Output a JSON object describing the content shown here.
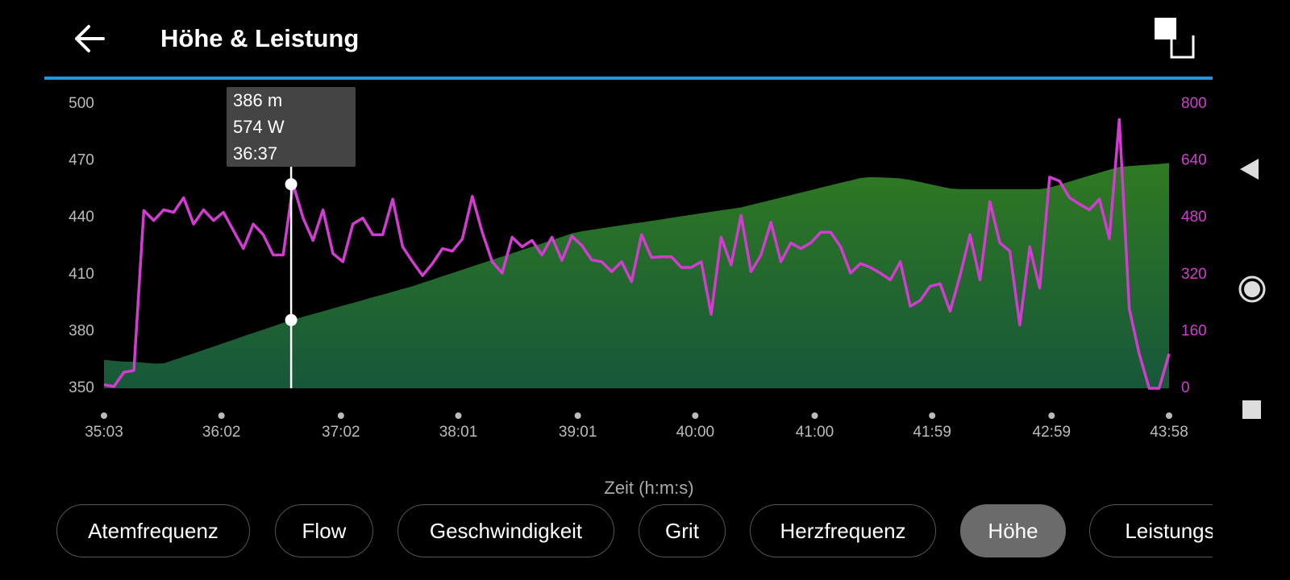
{
  "header": {
    "title": "Höhe & Leistung"
  },
  "chart_data": {
    "type": "line",
    "xlabel": "Zeit (h:m:s)",
    "x": [
      2103,
      2108,
      2113,
      2118,
      2123,
      2128,
      2133,
      2138,
      2143,
      2148,
      2153,
      2158,
      2163,
      2168,
      2173,
      2178,
      2183,
      2188,
      2193,
      2198,
      2203,
      2208,
      2213,
      2218,
      2223,
      2228,
      2233,
      2238,
      2243,
      2248,
      2253,
      2258,
      2263,
      2268,
      2273,
      2278,
      2283,
      2288,
      2293,
      2298,
      2303,
      2308,
      2313,
      2318,
      2323,
      2328,
      2333,
      2338,
      2343,
      2348,
      2353,
      2358,
      2363,
      2368,
      2373,
      2378,
      2383,
      2388,
      2393,
      2398,
      2403,
      2408,
      2413,
      2418,
      2423,
      2428,
      2433,
      2438,
      2443,
      2448,
      2453,
      2458,
      2463,
      2468,
      2473,
      2478,
      2483,
      2488,
      2493,
      2498,
      2503,
      2508,
      2513,
      2518,
      2523,
      2528,
      2533,
      2538,
      2543,
      2548,
      2553,
      2558,
      2563,
      2568,
      2573,
      2578,
      2583,
      2588,
      2593,
      2598,
      2603,
      2608,
      2613,
      2618,
      2623,
      2628,
      2633,
      2638
    ],
    "series": [
      {
        "type": "area",
        "color": "#2f7a22",
        "values": [
          365,
          364.5,
          364,
          364,
          363.5,
          363,
          363.1,
          364.9,
          366.7,
          368.4,
          370.2,
          372,
          373.8,
          375.6,
          377.4,
          379.2,
          380.9,
          382.7,
          384.5,
          386,
          387.7,
          389.2,
          390.6,
          392.1,
          393.6,
          395,
          396.5,
          398,
          399.4,
          400.9,
          402.4,
          403.8,
          405.6,
          407.3,
          409.1,
          410.8,
          412.5,
          414.3,
          416,
          417.8,
          419.5,
          421.2,
          423,
          424.7,
          426.4,
          428.2,
          429.9,
          431.7,
          432.8,
          433.6,
          434.4,
          435.2,
          436,
          436.8,
          437.5,
          438.3,
          439.1,
          439.9,
          440.7,
          441.5,
          442.3,
          443.1,
          443.9,
          444.6,
          445.4,
          446.7,
          448,
          449.3,
          450.6,
          451.9,
          453.2,
          454.5,
          455.8,
          457.1,
          458.4,
          459.6,
          460.9,
          461.4,
          461.2,
          461,
          460.7,
          459.9,
          458.8,
          457.6,
          456.5,
          455.4,
          455,
          455,
          455,
          455,
          455,
          455,
          455,
          455,
          455,
          455.9,
          457.4,
          459,
          460.6,
          462.2,
          463.7,
          465.3,
          466.8,
          467.2,
          467.6,
          467.9,
          468.3,
          468.8
        ]
      },
      {
        "type": "line",
        "axis": "y2",
        "color": "#d23cd0",
        "values": [
          10,
          5,
          45,
          50,
          500,
          472,
          502,
          495,
          536,
          462,
          502,
          472,
          495,
          444,
          393,
          462,
          432,
          375,
          375,
          574,
          479,
          416,
          502,
          379,
          356,
          462,
          479,
          432,
          432,
          532,
          398,
          356,
          317,
          351,
          393,
          386,
          420,
          540,
          439,
          356,
          324,
          425,
          398,
          416,
          375,
          425,
          360,
          428,
          402,
          361,
          356,
          328,
          356,
          300,
          432,
          368,
          370,
          370,
          340,
          340,
          356,
          208,
          425,
          347,
          486,
          328,
          375,
          467,
          356,
          409,
          393,
          409,
          439,
          439,
          398,
          324,
          351,
          340,
          324,
          305,
          356,
          231,
          247,
          287,
          294,
          217,
          317,
          432,
          305,
          525,
          409,
          386,
          178,
          398,
          282,
          594,
          583,
          536,
          518,
          502,
          532,
          421,
          756,
          224,
          97,
          0,
          0,
          97
        ]
      }
    ],
    "xlim": [
      2103,
      2638
    ],
    "xticks": [
      {
        "value": 2103,
        "label": "35:03"
      },
      {
        "value": 2162,
        "label": "36:02"
      },
      {
        "value": 2222,
        "label": "37:02"
      },
      {
        "value": 2281,
        "label": "38:01"
      },
      {
        "value": 2341,
        "label": "39:01"
      },
      {
        "value": 2400,
        "label": "40:00"
      },
      {
        "value": 2460,
        "label": "41:00"
      },
      {
        "value": 2519,
        "label": "41:59"
      },
      {
        "value": 2579,
        "label": "42:59"
      },
      {
        "value": 2638,
        "label": "43:58"
      }
    ],
    "ylim": [
      350,
      500
    ],
    "yticks": [
      350,
      380,
      410,
      440,
      470,
      500
    ],
    "y2lim": [
      0,
      800
    ],
    "y2ticks": [
      0,
      160,
      320,
      480,
      640,
      800
    ],
    "y2color": "#d23cd0",
    "grid": false,
    "cursor": {
      "x": 2197,
      "elevation": 386,
      "power": 574,
      "labels": [
        "386 m",
        "574 W",
        "36:37"
      ]
    }
  },
  "chips": [
    {
      "label": "Atemfrequenz",
      "selected": false
    },
    {
      "label": "Flow",
      "selected": false
    },
    {
      "label": "Geschwindigkeit",
      "selected": false
    },
    {
      "label": "Grit",
      "selected": false
    },
    {
      "label": "Herzfrequenz",
      "selected": false
    },
    {
      "label": "Höhe",
      "selected": true
    },
    {
      "label": "Leistungs",
      "selected": false
    }
  ]
}
